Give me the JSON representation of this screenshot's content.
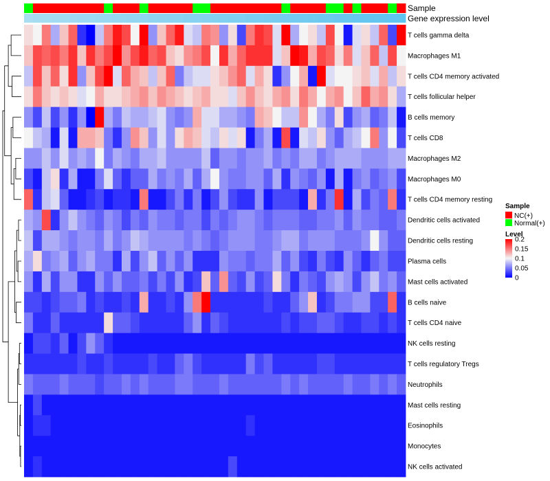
{
  "chart_data": {
    "type": "heatmap",
    "title": "",
    "annotation_tracks": [
      "Sample",
      "Gene expression level"
    ],
    "rows": [
      "T cells gamma delta",
      "Macrophages M1",
      "T cells CD4 memory activated",
      "T cells follicular helper",
      "B cells memory",
      "T cells CD8",
      "Macrophages M2",
      "Macrophages M0",
      "T cells CD4 memory resting",
      "Dendritic cells activated",
      "Dendritic cells resting",
      "Plasma cells",
      "Mast cells activated",
      "B cells naive",
      "T cells CD4 naive",
      "NK cells resting",
      "T cells regulatory  Tregs",
      "Neutrophils",
      "Mast cells resting",
      "Eosinophils",
      "Monocytes",
      "NK cells activated"
    ],
    "sample_groups": [
      "Normal(+)",
      "NC(+)",
      "NC(+)",
      "NC(+)",
      "NC(+)",
      "NC(+)",
      "NC(+)",
      "NC(+)",
      "NC(+)",
      "Normal(+)",
      "NC(+)",
      "NC(+)",
      "NC(+)",
      "Normal(+)",
      "NC(+)",
      "NC(+)",
      "NC(+)",
      "NC(+)",
      "NC(+)",
      "Normal(+)",
      "Normal(+)",
      "NC(+)",
      "NC(+)",
      "NC(+)",
      "NC(+)",
      "NC(+)",
      "NC(+)",
      "NC(+)",
      "NC(+)",
      "Normal(+)",
      "NC(+)",
      "NC(+)",
      "NC(+)",
      "NC(+)",
      "Normal(+)",
      "Normal(+)",
      "NC(+)",
      "Normal(+)",
      "NC(+)",
      "NC(+)",
      "NC(+)",
      "Normal(+)",
      "NC(+)"
    ],
    "values": [
      [
        0.11,
        0.1,
        0.15,
        0.07,
        0.12,
        0.16,
        0.02,
        0.0,
        0.08,
        0.15,
        0.19,
        0.17,
        0.1,
        0.2,
        0.06,
        0.12,
        0.16,
        0.19,
        0.09,
        0.08,
        0.15,
        0.14,
        0.06,
        0.11,
        0.03,
        0.15,
        0.18,
        0.17,
        0.09,
        0.21,
        0.07,
        0.1,
        0.11,
        0.08,
        0.17,
        0.1,
        0.01,
        0.09,
        0.11,
        0.08,
        0.16,
        0.03,
        0.21
      ],
      [
        0.12,
        0.17,
        0.16,
        0.17,
        0.15,
        0.18,
        0.12,
        0.18,
        0.15,
        0.17,
        0.2,
        0.14,
        0.17,
        0.19,
        0.16,
        0.17,
        0.12,
        0.11,
        0.14,
        0.15,
        0.17,
        0.1,
        0.18,
        0.13,
        0.16,
        0.18,
        0.18,
        0.18,
        0.09,
        0.12,
        0.2,
        0.19,
        0.13,
        0.17,
        0.16,
        0.11,
        0.15,
        0.09,
        0.12,
        0.16,
        0.08,
        0.17,
        0.1
      ],
      [
        0.08,
        0.17,
        0.12,
        0.16,
        0.11,
        0.18,
        0.06,
        0.12,
        0.17,
        0.2,
        0.09,
        0.16,
        0.13,
        0.12,
        0.08,
        0.12,
        0.16,
        0.05,
        0.08,
        0.09,
        0.09,
        0.11,
        0.12,
        0.14,
        0.16,
        0.09,
        0.13,
        0.11,
        0.02,
        0.06,
        0.1,
        0.13,
        0.01,
        0.21,
        0.09,
        0.1,
        0.1,
        0.11,
        0.12,
        0.09,
        0.13,
        0.08,
        0.11
      ],
      [
        0.11,
        0.15,
        0.12,
        0.11,
        0.12,
        0.11,
        0.09,
        0.1,
        0.13,
        0.11,
        0.11,
        0.12,
        0.13,
        0.14,
        0.12,
        0.14,
        0.13,
        0.12,
        0.11,
        0.12,
        0.13,
        0.11,
        0.11,
        0.09,
        0.12,
        0.14,
        0.12,
        0.11,
        0.13,
        0.14,
        0.11,
        0.15,
        0.13,
        0.1,
        0.13,
        0.14,
        0.1,
        0.12,
        0.16,
        0.13,
        0.14,
        0.11,
        0.07
      ],
      [
        0.06,
        0.03,
        0.08,
        0.03,
        0.06,
        0.02,
        0.06,
        0.0,
        0.21,
        0.07,
        0.05,
        0.08,
        0.07,
        0.07,
        0.08,
        0.09,
        0.06,
        0.05,
        0.06,
        0.13,
        0.09,
        0.09,
        0.07,
        0.07,
        0.06,
        0.05,
        0.13,
        0.12,
        0.1,
        0.08,
        0.08,
        0.14,
        0.1,
        0.07,
        0.05,
        0.11,
        0.03,
        0.06,
        0.07,
        0.04,
        0.05,
        0.08,
        0.01
      ],
      [
        0.1,
        0.08,
        0.07,
        0.01,
        0.09,
        0.01,
        0.13,
        0.13,
        0.12,
        0.05,
        0.02,
        0.06,
        0.14,
        0.12,
        0.06,
        0.09,
        0.06,
        0.11,
        0.13,
        0.12,
        0.09,
        0.08,
        0.11,
        0.09,
        0.11,
        0.01,
        0.05,
        0.07,
        0.01,
        0.17,
        0.01,
        0.09,
        0.08,
        0.11,
        0.06,
        0.04,
        0.07,
        0.08,
        0.1,
        0.15,
        0.06,
        0.1,
        0.03
      ],
      [
        0.06,
        0.06,
        0.08,
        0.06,
        0.09,
        0.06,
        0.07,
        0.06,
        0.1,
        0.05,
        0.07,
        0.06,
        0.05,
        0.07,
        0.07,
        0.08,
        0.06,
        0.06,
        0.06,
        0.06,
        0.08,
        0.04,
        0.06,
        0.06,
        0.05,
        0.06,
        0.06,
        0.07,
        0.05,
        0.06,
        0.05,
        0.07,
        0.07,
        0.05,
        0.06,
        0.07,
        0.07,
        0.07,
        0.06,
        0.06,
        0.06,
        0.07,
        0.07
      ],
      [
        0.03,
        0.01,
        0.08,
        0.11,
        0.02,
        0.07,
        0.01,
        0.01,
        0.05,
        0.09,
        0.04,
        0.02,
        0.04,
        0.04,
        0.07,
        0.05,
        0.06,
        0.05,
        0.07,
        0.04,
        0.07,
        0.1,
        0.06,
        0.05,
        0.05,
        0.06,
        0.06,
        0.04,
        0.07,
        0.02,
        0.06,
        0.05,
        0.04,
        0.06,
        0.01,
        0.07,
        0.01,
        0.05,
        0.06,
        0.04,
        0.05,
        0.06,
        0.03
      ],
      [
        0.16,
        0.02,
        0.08,
        0.09,
        0.04,
        0.01,
        0.01,
        0.02,
        0.03,
        0.01,
        0.02,
        0.02,
        0.01,
        0.15,
        0.01,
        0.01,
        0.03,
        0.05,
        0.02,
        0.05,
        0.01,
        0.03,
        0.06,
        0.03,
        0.02,
        0.02,
        0.06,
        0.01,
        0.03,
        0.03,
        0.03,
        0.01,
        0.13,
        0.02,
        0.05,
        0.18,
        0.01,
        0.07,
        0.03,
        0.05,
        0.04,
        0.15,
        0.02
      ],
      [
        0.07,
        0.06,
        0.17,
        0.02,
        0.06,
        0.08,
        0.06,
        0.05,
        0.04,
        0.06,
        0.05,
        0.03,
        0.05,
        0.04,
        0.06,
        0.05,
        0.05,
        0.04,
        0.05,
        0.05,
        0.03,
        0.05,
        0.04,
        0.05,
        0.06,
        0.06,
        0.05,
        0.04,
        0.05,
        0.05,
        0.05,
        0.04,
        0.04,
        0.05,
        0.05,
        0.06,
        0.04,
        0.06,
        0.05,
        0.05,
        0.04,
        0.04,
        0.05
      ],
      [
        0.08,
        0.03,
        0.07,
        0.07,
        0.06,
        0.05,
        0.06,
        0.06,
        0.05,
        0.07,
        0.05,
        0.06,
        0.08,
        0.07,
        0.06,
        0.06,
        0.06,
        0.06,
        0.05,
        0.06,
        0.05,
        0.04,
        0.05,
        0.06,
        0.06,
        0.06,
        0.05,
        0.05,
        0.06,
        0.07,
        0.07,
        0.05,
        0.06,
        0.06,
        0.06,
        0.05,
        0.05,
        0.05,
        0.06,
        0.1,
        0.06,
        0.04,
        0.04
      ],
      [
        0.07,
        0.11,
        0.05,
        0.06,
        0.07,
        0.04,
        0.06,
        0.07,
        0.05,
        0.05,
        0.02,
        0.07,
        0.03,
        0.06,
        0.08,
        0.04,
        0.06,
        0.04,
        0.06,
        0.02,
        0.02,
        0.02,
        0.06,
        0.05,
        0.05,
        0.04,
        0.05,
        0.05,
        0.07,
        0.04,
        0.06,
        0.03,
        0.02,
        0.05,
        0.03,
        0.02,
        0.06,
        0.04,
        0.02,
        0.04,
        0.05,
        0.03,
        0.03
      ],
      [
        0.06,
        0.02,
        0.07,
        0.03,
        0.06,
        0.06,
        0.02,
        0.02,
        0.06,
        0.04,
        0.06,
        0.04,
        0.04,
        0.05,
        0.03,
        0.05,
        0.03,
        0.06,
        0.02,
        0.03,
        0.12,
        0.04,
        0.14,
        0.04,
        0.03,
        0.06,
        0.03,
        0.04,
        0.11,
        0.05,
        0.02,
        0.05,
        0.04,
        0.03,
        0.06,
        0.07,
        0.06,
        0.03,
        0.06,
        0.08,
        0.05,
        0.06,
        0.04
      ],
      [
        0.03,
        0.03,
        0.02,
        0.03,
        0.04,
        0.04,
        0.05,
        0.02,
        0.03,
        0.02,
        0.02,
        0.03,
        0.02,
        0.13,
        0.02,
        0.02,
        0.03,
        0.02,
        0.06,
        0.15,
        0.21,
        0.02,
        0.02,
        0.02,
        0.02,
        0.02,
        0.02,
        0.03,
        0.02,
        0.02,
        0.04,
        0.06,
        0.12,
        0.02,
        0.03,
        0.05,
        0.05,
        0.06,
        0.06,
        0.03,
        0.03,
        0.16,
        0.02
      ],
      [
        0.05,
        0.02,
        0.02,
        0.04,
        0.02,
        0.02,
        0.02,
        0.02,
        0.02,
        0.11,
        0.04,
        0.04,
        0.03,
        0.02,
        0.02,
        0.02,
        0.02,
        0.02,
        0.04,
        0.06,
        0.02,
        0.04,
        0.03,
        0.02,
        0.02,
        0.02,
        0.02,
        0.02,
        0.02,
        0.03,
        0.02,
        0.03,
        0.03,
        0.04,
        0.04,
        0.03,
        0.02,
        0.02,
        0.03,
        0.03,
        0.02,
        0.03,
        0.02
      ],
      [
        0.01,
        0.03,
        0.03,
        0.02,
        0.04,
        0.01,
        0.03,
        0.06,
        0.04,
        0.02,
        0.01,
        0.01,
        0.01,
        0.01,
        0.01,
        0.01,
        0.01,
        0.01,
        0.01,
        0.01,
        0.01,
        0.01,
        0.01,
        0.01,
        0.01,
        0.01,
        0.01,
        0.01,
        0.01,
        0.01,
        0.01,
        0.01,
        0.01,
        0.01,
        0.01,
        0.01,
        0.01,
        0.01,
        0.01,
        0.01,
        0.01,
        0.01,
        0.01
      ],
      [
        0.02,
        0.02,
        0.02,
        0.02,
        0.02,
        0.02,
        0.03,
        0.02,
        0.02,
        0.03,
        0.02,
        0.02,
        0.02,
        0.02,
        0.03,
        0.02,
        0.02,
        0.04,
        0.05,
        0.03,
        0.02,
        0.02,
        0.02,
        0.02,
        0.02,
        0.05,
        0.03,
        0.04,
        0.02,
        0.02,
        0.02,
        0.02,
        0.02,
        0.03,
        0.03,
        0.02,
        0.02,
        0.02,
        0.02,
        0.02,
        0.02,
        0.02,
        0.02
      ],
      [
        0.05,
        0.04,
        0.04,
        0.04,
        0.05,
        0.04,
        0.04,
        0.04,
        0.03,
        0.04,
        0.04,
        0.05,
        0.04,
        0.05,
        0.04,
        0.04,
        0.04,
        0.05,
        0.05,
        0.04,
        0.04,
        0.04,
        0.05,
        0.04,
        0.04,
        0.04,
        0.04,
        0.04,
        0.04,
        0.05,
        0.04,
        0.05,
        0.04,
        0.04,
        0.04,
        0.04,
        0.05,
        0.04,
        0.04,
        0.05,
        0.04,
        0.05,
        0.04
      ],
      [
        0.01,
        0.03,
        0.01,
        0.01,
        0.01,
        0.01,
        0.01,
        0.01,
        0.01,
        0.01,
        0.01,
        0.01,
        0.01,
        0.01,
        0.01,
        0.01,
        0.01,
        0.01,
        0.01,
        0.01,
        0.01,
        0.01,
        0.01,
        0.01,
        0.01,
        0.01,
        0.01,
        0.01,
        0.01,
        0.01,
        0.01,
        0.01,
        0.01,
        0.01,
        0.01,
        0.01,
        0.01,
        0.01,
        0.01,
        0.01,
        0.01,
        0.01,
        0.01
      ],
      [
        0.01,
        0.02,
        0.02,
        0.01,
        0.01,
        0.01,
        0.01,
        0.01,
        0.01,
        0.01,
        0.01,
        0.01,
        0.01,
        0.01,
        0.01,
        0.01,
        0.01,
        0.01,
        0.01,
        0.01,
        0.01,
        0.01,
        0.01,
        0.01,
        0.01,
        0.02,
        0.01,
        0.01,
        0.01,
        0.01,
        0.01,
        0.01,
        0.01,
        0.01,
        0.01,
        0.01,
        0.01,
        0.01,
        0.01,
        0.01,
        0.01,
        0.01,
        0.01
      ],
      [
        0.01,
        0.01,
        0.01,
        0.01,
        0.01,
        0.01,
        0.01,
        0.01,
        0.01,
        0.01,
        0.01,
        0.01,
        0.01,
        0.01,
        0.01,
        0.01,
        0.01,
        0.01,
        0.01,
        0.01,
        0.01,
        0.01,
        0.01,
        0.01,
        0.01,
        0.01,
        0.01,
        0.01,
        0.01,
        0.01,
        0.01,
        0.01,
        0.01,
        0.01,
        0.01,
        0.01,
        0.01,
        0.01,
        0.01,
        0.01,
        0.01,
        0.01,
        0.01
      ],
      [
        0.01,
        0.02,
        0.01,
        0.01,
        0.01,
        0.01,
        0.01,
        0.01,
        0.01,
        0.01,
        0.01,
        0.01,
        0.01,
        0.01,
        0.01,
        0.01,
        0.01,
        0.01,
        0.01,
        0.01,
        0.01,
        0.01,
        0.01,
        0.03,
        0.01,
        0.01,
        0.01,
        0.01,
        0.01,
        0.01,
        0.01,
        0.01,
        0.01,
        0.01,
        0.01,
        0.01,
        0.01,
        0.01,
        0.01,
        0.01,
        0.01,
        0.01,
        0.01
      ]
    ],
    "color_scale": {
      "min": 0,
      "mid": 0.1,
      "max": 0.2,
      "low_color": "#0000ff",
      "mid_color": "#f4f4f4",
      "high_color": "#ff0000"
    },
    "legend": {
      "sample_title": "Sample",
      "sample_entries": [
        {
          "label": "NC(+)",
          "color": "#ff0000"
        },
        {
          "label": "Normal(+)",
          "color": "#00ff00"
        }
      ],
      "level_title": "Level",
      "level_ticks": [
        "0.2",
        "0.15",
        "0.1",
        "0.05",
        "0"
      ],
      "level_tick_values": [
        0.2,
        0.15,
        0.1,
        0.05,
        0
      ]
    },
    "expression_bar_colors": {
      "start": "#a8ddf2",
      "end": "#5ec4f0"
    },
    "dendrogram": "row clustering tree (left)"
  }
}
